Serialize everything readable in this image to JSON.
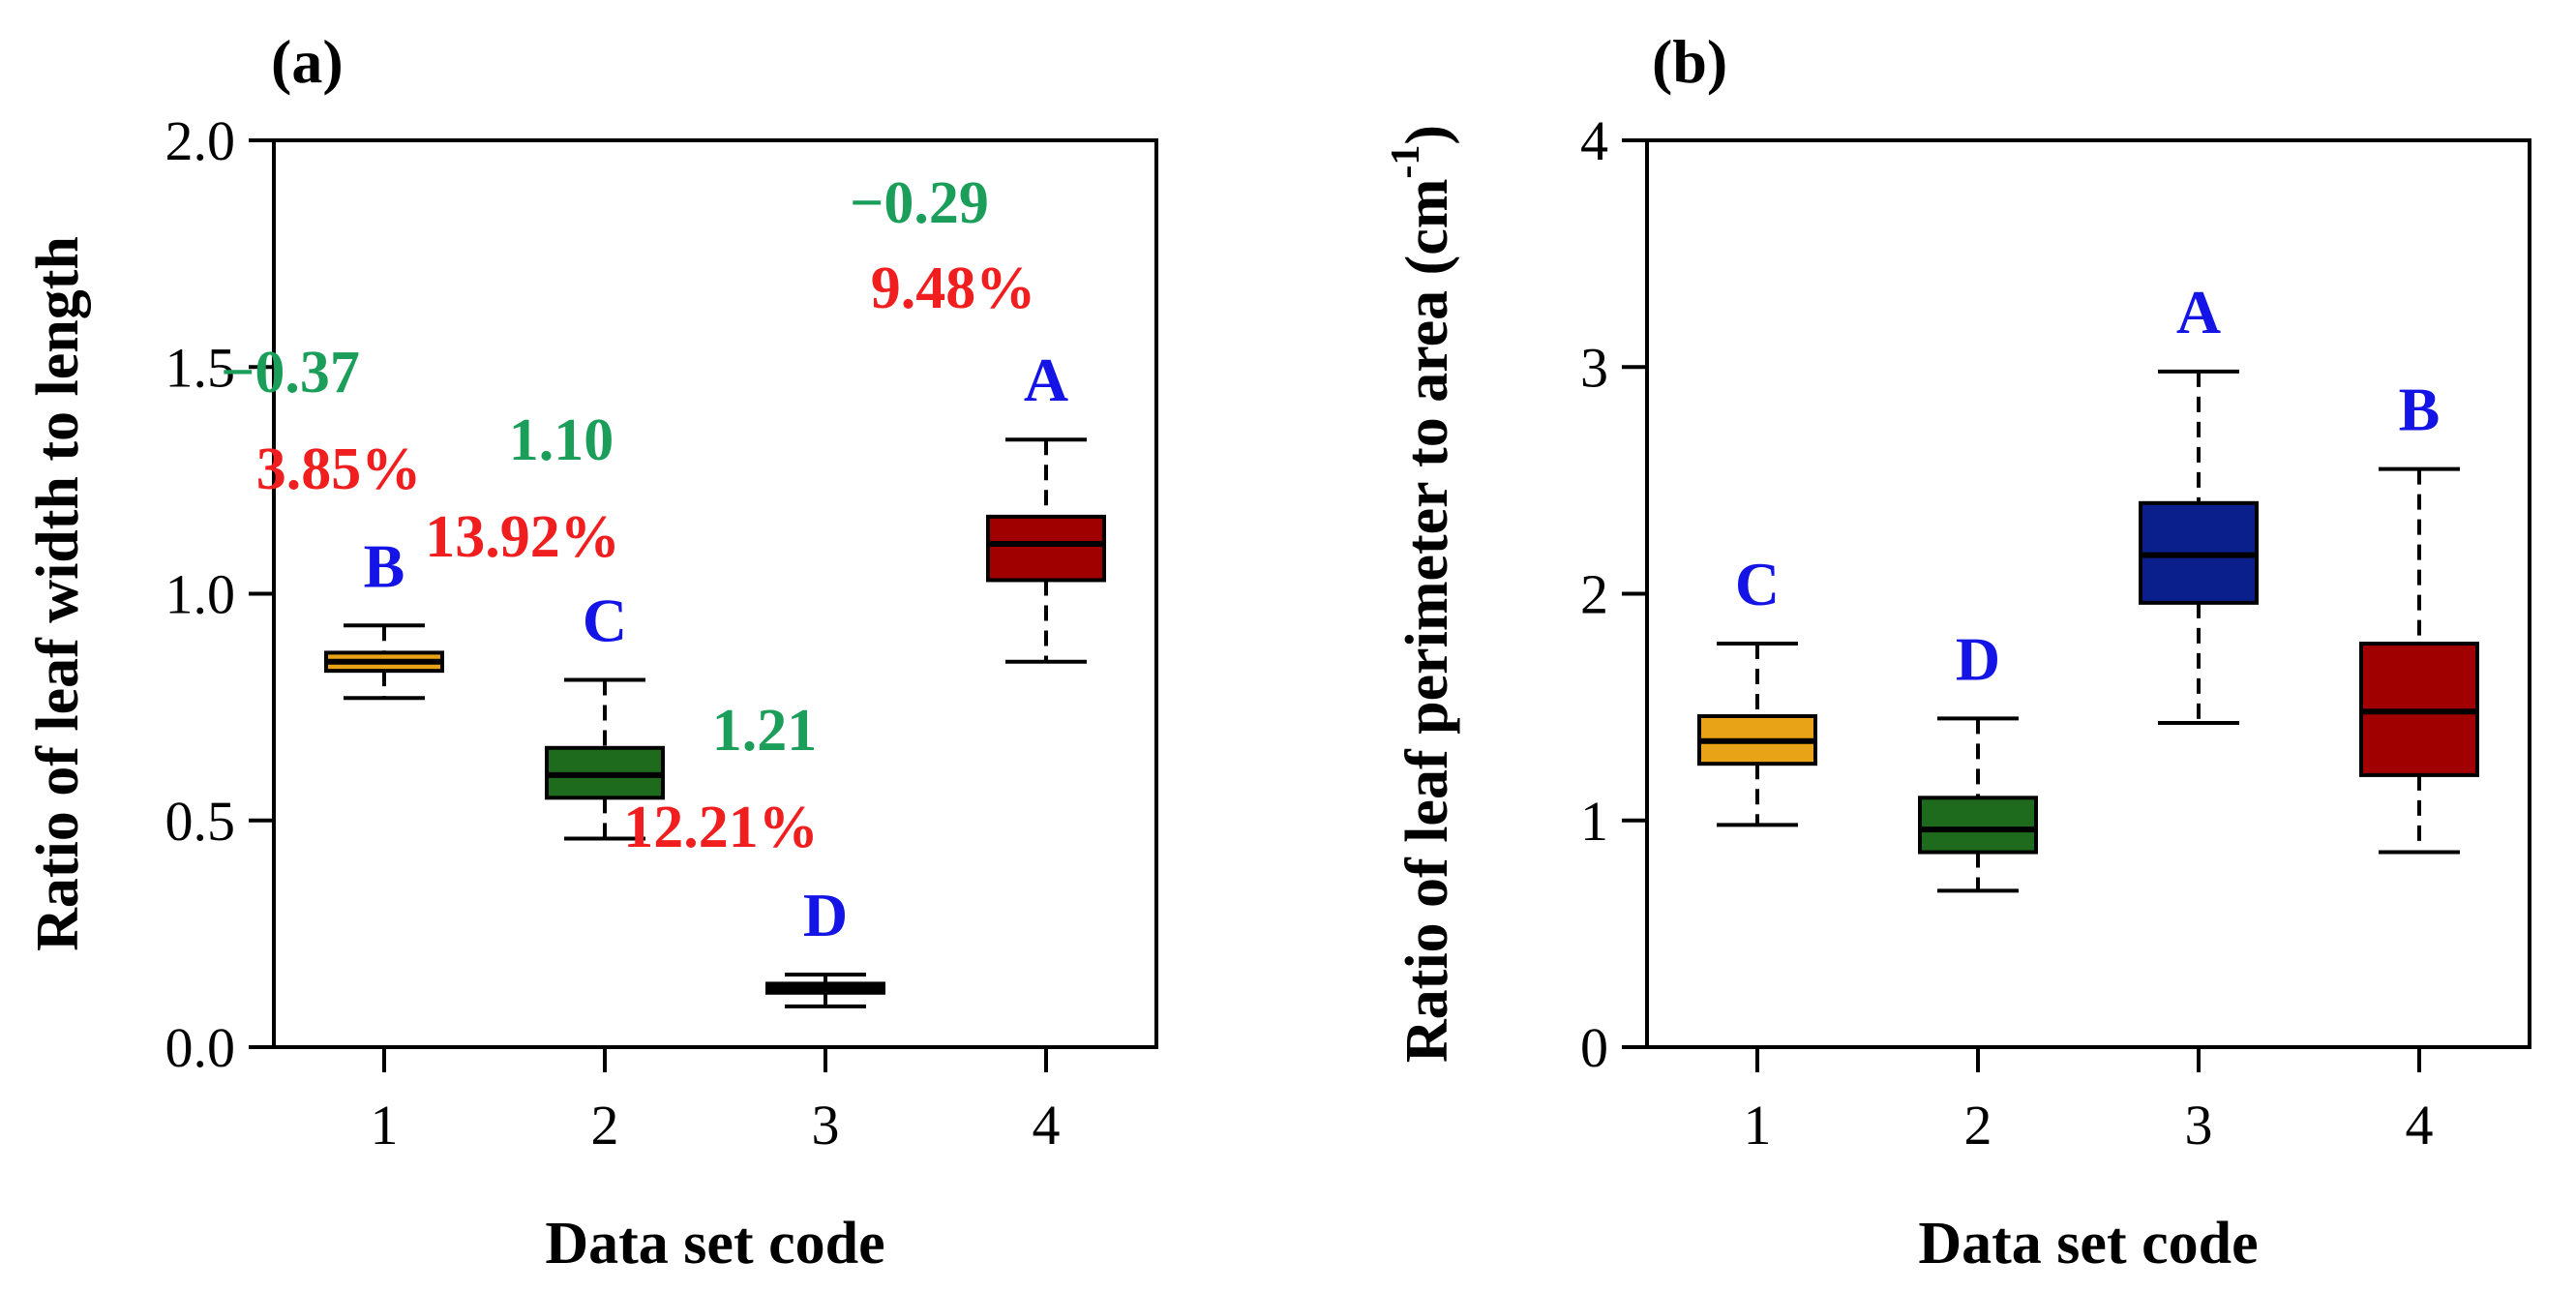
{
  "chart_data": [
    {
      "type": "box",
      "panel_label": "(a)",
      "xlabel": "Data set code",
      "ylabel": "Ratio of leaf width to length",
      "categories": [
        "1",
        "2",
        "3",
        "4"
      ],
      "ylim": [
        0,
        2
      ],
      "yticks": [
        "0.0",
        "0.5",
        "1.0",
        "1.5",
        "2.0"
      ],
      "boxes": [
        {
          "code": "1",
          "whisker_low": 0.77,
          "q1": 0.83,
          "median": 0.85,
          "q3": 0.87,
          "whisker_high": 0.93,
          "color": "#E8A317",
          "letter": "B"
        },
        {
          "code": "2",
          "whisker_low": 0.46,
          "q1": 0.55,
          "median": 0.6,
          "q3": 0.66,
          "whisker_high": 0.81,
          "color": "#1E6B1E",
          "letter": "C"
        },
        {
          "code": "3",
          "whisker_low": 0.09,
          "q1": 0.12,
          "median": 0.13,
          "q3": 0.14,
          "whisker_high": 0.16,
          "color": "#606060",
          "letter": "D"
        },
        {
          "code": "4",
          "whisker_low": 0.85,
          "q1": 1.03,
          "median": 1.11,
          "q3": 1.17,
          "whisker_high": 1.34,
          "color": "#A00000",
          "letter": "A"
        }
      ],
      "annotations": [
        {
          "code": "1",
          "stat": "−0.37",
          "pct": "3.85%"
        },
        {
          "code": "2",
          "stat": "1.10",
          "pct": "13.92%"
        },
        {
          "code": "3",
          "stat": "1.21",
          "pct": "12.21%"
        },
        {
          "code": "4",
          "stat": "−0.29",
          "pct": "9.48%"
        }
      ]
    },
    {
      "type": "box",
      "panel_label": "(b)",
      "xlabel": "Data set code",
      "ylabel": "Ratio of leaf perimeter to area (cm",
      "ylabel_superscript": "-1",
      "ylabel_suffix": ")",
      "categories": [
        "1",
        "2",
        "3",
        "4"
      ],
      "ylim": [
        0,
        4
      ],
      "yticks": [
        "0",
        "1",
        "2",
        "3",
        "4"
      ],
      "boxes": [
        {
          "code": "1",
          "whisker_low": 0.98,
          "q1": 1.25,
          "median": 1.35,
          "q3": 1.46,
          "whisker_high": 1.78,
          "color": "#E8A317",
          "letter": "C"
        },
        {
          "code": "2",
          "whisker_low": 0.69,
          "q1": 0.86,
          "median": 0.96,
          "q3": 1.1,
          "whisker_high": 1.45,
          "color": "#1E6B1E",
          "letter": "D"
        },
        {
          "code": "3",
          "whisker_low": 1.43,
          "q1": 1.96,
          "median": 2.17,
          "q3": 2.4,
          "whisker_high": 2.98,
          "color": "#0A1E8C",
          "letter": "A"
        },
        {
          "code": "4",
          "whisker_low": 0.86,
          "q1": 1.2,
          "median": 1.48,
          "q3": 1.78,
          "whisker_high": 2.55,
          "color": "#A00000",
          "letter": "B"
        }
      ]
    }
  ],
  "colors": {
    "letter": "#1414E6",
    "stat": "#1A9E5A",
    "pct": "#F01E1E",
    "axis": "#000000"
  }
}
